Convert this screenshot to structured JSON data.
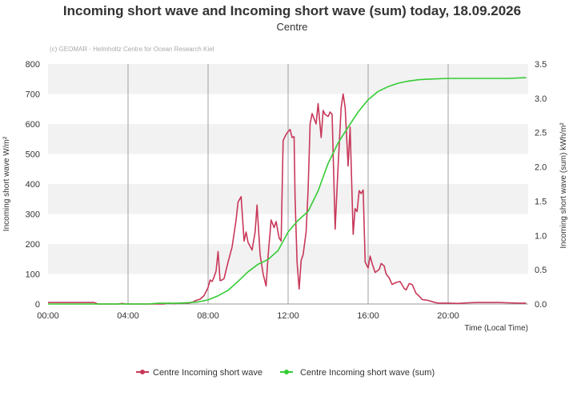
{
  "chart_data": {
    "type": "line",
    "title": "Incoming short wave and Incoming short wave (sum) today, 18.09.2026",
    "subtitle": "Centre",
    "credit": "(c) GEOMAR - Helmholtz Centre for Ocean Research Kiel",
    "xlabel": "Time (Local Time)",
    "ylabel_left": "Incoming short wave W/m²",
    "ylabel_right": "Incoming short wave (sum) kWh/m²",
    "xlim": [
      0,
      24
    ],
    "ylim_left": [
      0,
      800
    ],
    "ylim_right": [
      0,
      3.5
    ],
    "x_ticks": [
      0,
      4,
      8,
      12,
      16,
      20
    ],
    "x_tick_labels": [
      "00:00",
      "04:00",
      "08:00",
      "12:00",
      "16:00",
      "20:00"
    ],
    "y_ticks_left": [
      "0",
      "100",
      "200",
      "300",
      "400",
      "500",
      "600",
      "700",
      "800"
    ],
    "y_ticks_right": [
      "0.0",
      "0.5",
      "1.0",
      "1.5",
      "2.0",
      "2.5",
      "3.0",
      "3.5"
    ],
    "grid": "alternating horizontal bands, vertical lines every 4 hours",
    "legend_position": "bottom-center",
    "series": [
      {
        "name": "Centre Incoming short wave",
        "color": "#c8385a",
        "axis": "left",
        "points": [
          [
            0.0,
            5
          ],
          [
            0.5,
            5
          ],
          [
            1.0,
            5
          ],
          [
            1.5,
            5
          ],
          [
            2.0,
            5
          ],
          [
            2.3,
            5
          ],
          [
            2.5,
            0
          ],
          [
            3.5,
            0
          ],
          [
            3.7,
            2
          ],
          [
            3.9,
            0
          ],
          [
            5.5,
            0
          ],
          [
            5.8,
            0
          ],
          [
            6.0,
            3
          ],
          [
            6.1,
            2
          ],
          [
            6.3,
            1
          ],
          [
            6.6,
            3
          ],
          [
            7.0,
            3
          ],
          [
            7.1,
            4
          ],
          [
            7.2,
            5
          ],
          [
            7.4,
            12
          ],
          [
            7.6,
            16
          ],
          [
            7.8,
            28
          ],
          [
            8.0,
            55
          ],
          [
            8.1,
            80
          ],
          [
            8.2,
            75
          ],
          [
            8.3,
            90
          ],
          [
            8.4,
            110
          ],
          [
            8.5,
            175
          ],
          [
            8.6,
            78
          ],
          [
            8.7,
            80
          ],
          [
            8.8,
            85
          ],
          [
            9.0,
            140
          ],
          [
            9.2,
            190
          ],
          [
            9.4,
            280
          ],
          [
            9.5,
            340
          ],
          [
            9.65,
            358
          ],
          [
            9.8,
            210
          ],
          [
            9.9,
            240
          ],
          [
            10.0,
            205
          ],
          [
            10.2,
            180
          ],
          [
            10.35,
            240
          ],
          [
            10.45,
            330
          ],
          [
            10.6,
            165
          ],
          [
            10.75,
            100
          ],
          [
            10.9,
            60
          ],
          [
            11.0,
            160
          ],
          [
            11.15,
            280
          ],
          [
            11.3,
            255
          ],
          [
            11.4,
            275
          ],
          [
            11.55,
            220
          ],
          [
            11.65,
            210
          ],
          [
            11.75,
            545
          ],
          [
            11.9,
            565
          ],
          [
            12.0,
            575
          ],
          [
            12.1,
            582
          ],
          [
            12.2,
            555
          ],
          [
            12.3,
            558
          ],
          [
            12.35,
            355
          ],
          [
            12.45,
            140
          ],
          [
            12.55,
            50
          ],
          [
            12.65,
            145
          ],
          [
            12.75,
            165
          ],
          [
            12.9,
            240
          ],
          [
            13.0,
            380
          ],
          [
            13.1,
            600
          ],
          [
            13.2,
            635
          ],
          [
            13.4,
            600
          ],
          [
            13.5,
            668
          ],
          [
            13.65,
            555
          ],
          [
            13.75,
            645
          ],
          [
            13.85,
            632
          ],
          [
            14.0,
            625
          ],
          [
            14.1,
            640
          ],
          [
            14.2,
            632
          ],
          [
            14.35,
            250
          ],
          [
            14.5,
            460
          ],
          [
            14.65,
            655
          ],
          [
            14.75,
            700
          ],
          [
            14.85,
            655
          ],
          [
            15.0,
            460
          ],
          [
            15.1,
            590
          ],
          [
            15.25,
            232
          ],
          [
            15.35,
            318
          ],
          [
            15.45,
            308
          ],
          [
            15.55,
            378
          ],
          [
            15.65,
            368
          ],
          [
            15.75,
            380
          ],
          [
            15.85,
            140
          ],
          [
            16.0,
            120
          ],
          [
            16.1,
            160
          ],
          [
            16.2,
            135
          ],
          [
            16.35,
            105
          ],
          [
            16.55,
            115
          ],
          [
            16.65,
            135
          ],
          [
            16.8,
            127
          ],
          [
            16.9,
            100
          ],
          [
            17.05,
            87
          ],
          [
            17.2,
            65
          ],
          [
            17.4,
            72
          ],
          [
            17.6,
            75
          ],
          [
            17.8,
            52
          ],
          [
            17.9,
            47
          ],
          [
            18.05,
            68
          ],
          [
            18.2,
            65
          ],
          [
            18.4,
            35
          ],
          [
            18.5,
            30
          ],
          [
            18.7,
            15
          ],
          [
            19.0,
            12
          ],
          [
            19.3,
            6
          ],
          [
            19.5,
            3
          ],
          [
            20.0,
            3
          ],
          [
            20.5,
            2
          ],
          [
            21.0,
            4
          ],
          [
            21.5,
            5
          ],
          [
            22.0,
            5
          ],
          [
            22.5,
            5
          ],
          [
            23.0,
            4
          ],
          [
            23.5,
            3
          ],
          [
            23.9,
            3
          ]
        ]
      },
      {
        "name": "Centre Incoming short wave (sum)",
        "color": "#33cc33",
        "axis": "right",
        "points": [
          [
            0.0,
            0.0
          ],
          [
            1.0,
            0.0
          ],
          [
            2.0,
            0.0
          ],
          [
            3.0,
            0.0
          ],
          [
            4.0,
            0.0
          ],
          [
            5.0,
            0.0
          ],
          [
            5.5,
            0.01
          ],
          [
            6.0,
            0.01
          ],
          [
            6.5,
            0.01
          ],
          [
            7.0,
            0.02
          ],
          [
            7.5,
            0.03
          ],
          [
            8.0,
            0.06
          ],
          [
            8.5,
            0.12
          ],
          [
            9.0,
            0.2
          ],
          [
            9.5,
            0.33
          ],
          [
            10.0,
            0.47
          ],
          [
            10.5,
            0.58
          ],
          [
            11.0,
            0.65
          ],
          [
            11.5,
            0.78
          ],
          [
            12.0,
            1.05
          ],
          [
            12.5,
            1.22
          ],
          [
            13.0,
            1.35
          ],
          [
            13.5,
            1.65
          ],
          [
            14.0,
            2.05
          ],
          [
            14.5,
            2.35
          ],
          [
            15.0,
            2.58
          ],
          [
            15.5,
            2.8
          ],
          [
            16.0,
            2.98
          ],
          [
            16.5,
            3.1
          ],
          [
            17.0,
            3.17
          ],
          [
            17.5,
            3.22
          ],
          [
            18.0,
            3.25
          ],
          [
            18.5,
            3.27
          ],
          [
            19.0,
            3.28
          ],
          [
            20.0,
            3.29
          ],
          [
            21.0,
            3.29
          ],
          [
            22.0,
            3.29
          ],
          [
            23.0,
            3.29
          ],
          [
            23.9,
            3.3
          ]
        ]
      }
    ]
  }
}
